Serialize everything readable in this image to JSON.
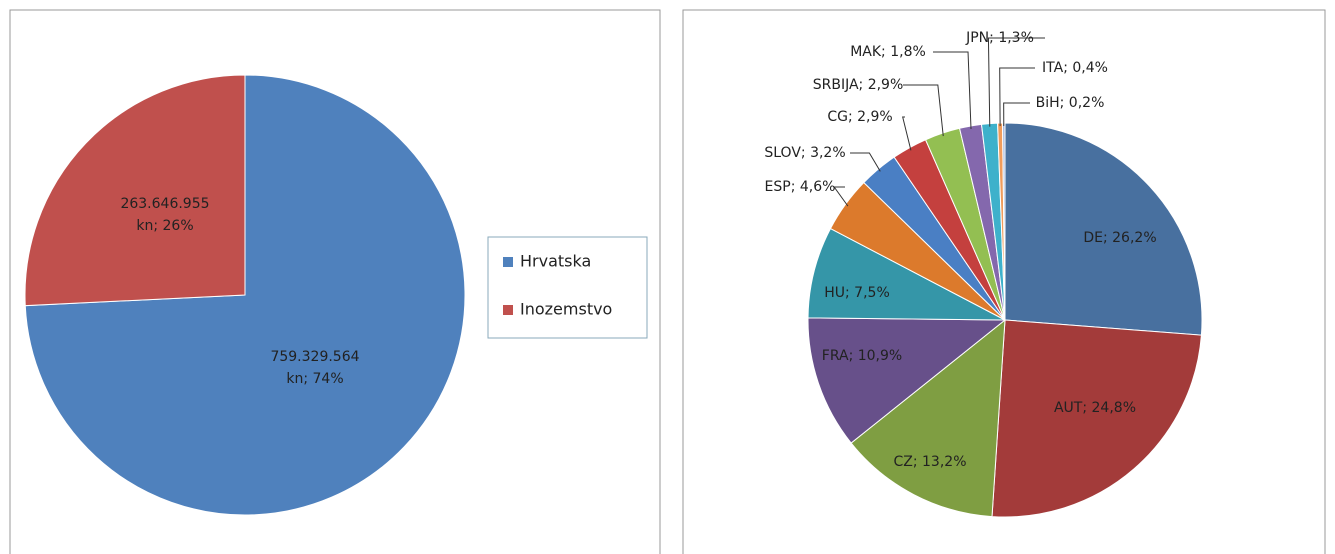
{
  "chart_data": [
    {
      "type": "pie",
      "categories": [
        "Hrvatska",
        "Inozemstvo"
      ],
      "values": [
        759329564,
        263646955
      ],
      "value_labels": [
        "759.329.564\nkn; 74%",
        "263.646.955\nkn; 26%"
      ],
      "colors": [
        "#4f81bd",
        "#c0504d"
      ],
      "legend": "right"
    },
    {
      "type": "pie",
      "categories": [
        "DE",
        "AUT",
        "CZ",
        "FRA",
        "HU",
        "ESP",
        "SLOV",
        "CG",
        "SRBIJA",
        "MAK",
        "JPN",
        "ITA",
        "BiH"
      ],
      "values": [
        26.2,
        24.8,
        13.2,
        10.9,
        7.5,
        4.6,
        3.2,
        2.9,
        2.9,
        1.8,
        1.3,
        0.4,
        0.2
      ],
      "value_labels": [
        "DE; 26,2%",
        "AUT; 24,8%",
        "CZ; 13,2%",
        "FRA; 10,9%",
        "HU; 7,5%",
        "ESP; 4,6%",
        "SLOV; 3,2%",
        "CG; 2,9%",
        "SRBIJA; 2,9%",
        "MAK; 1,8%",
        "JPN; 1,3%",
        "ITA; 0,4%",
        "BiH; 0,2%"
      ],
      "colors": [
        "#48709f",
        "#a33b3a",
        "#7f9e42",
        "#67508a",
        "#3596a8",
        "#dc7a2c",
        "#4a7fc4",
        "#c4403e",
        "#93bf52",
        "#8468ad",
        "#3eb1cb",
        "#f09c5c",
        "#9fb6df"
      ]
    }
  ]
}
